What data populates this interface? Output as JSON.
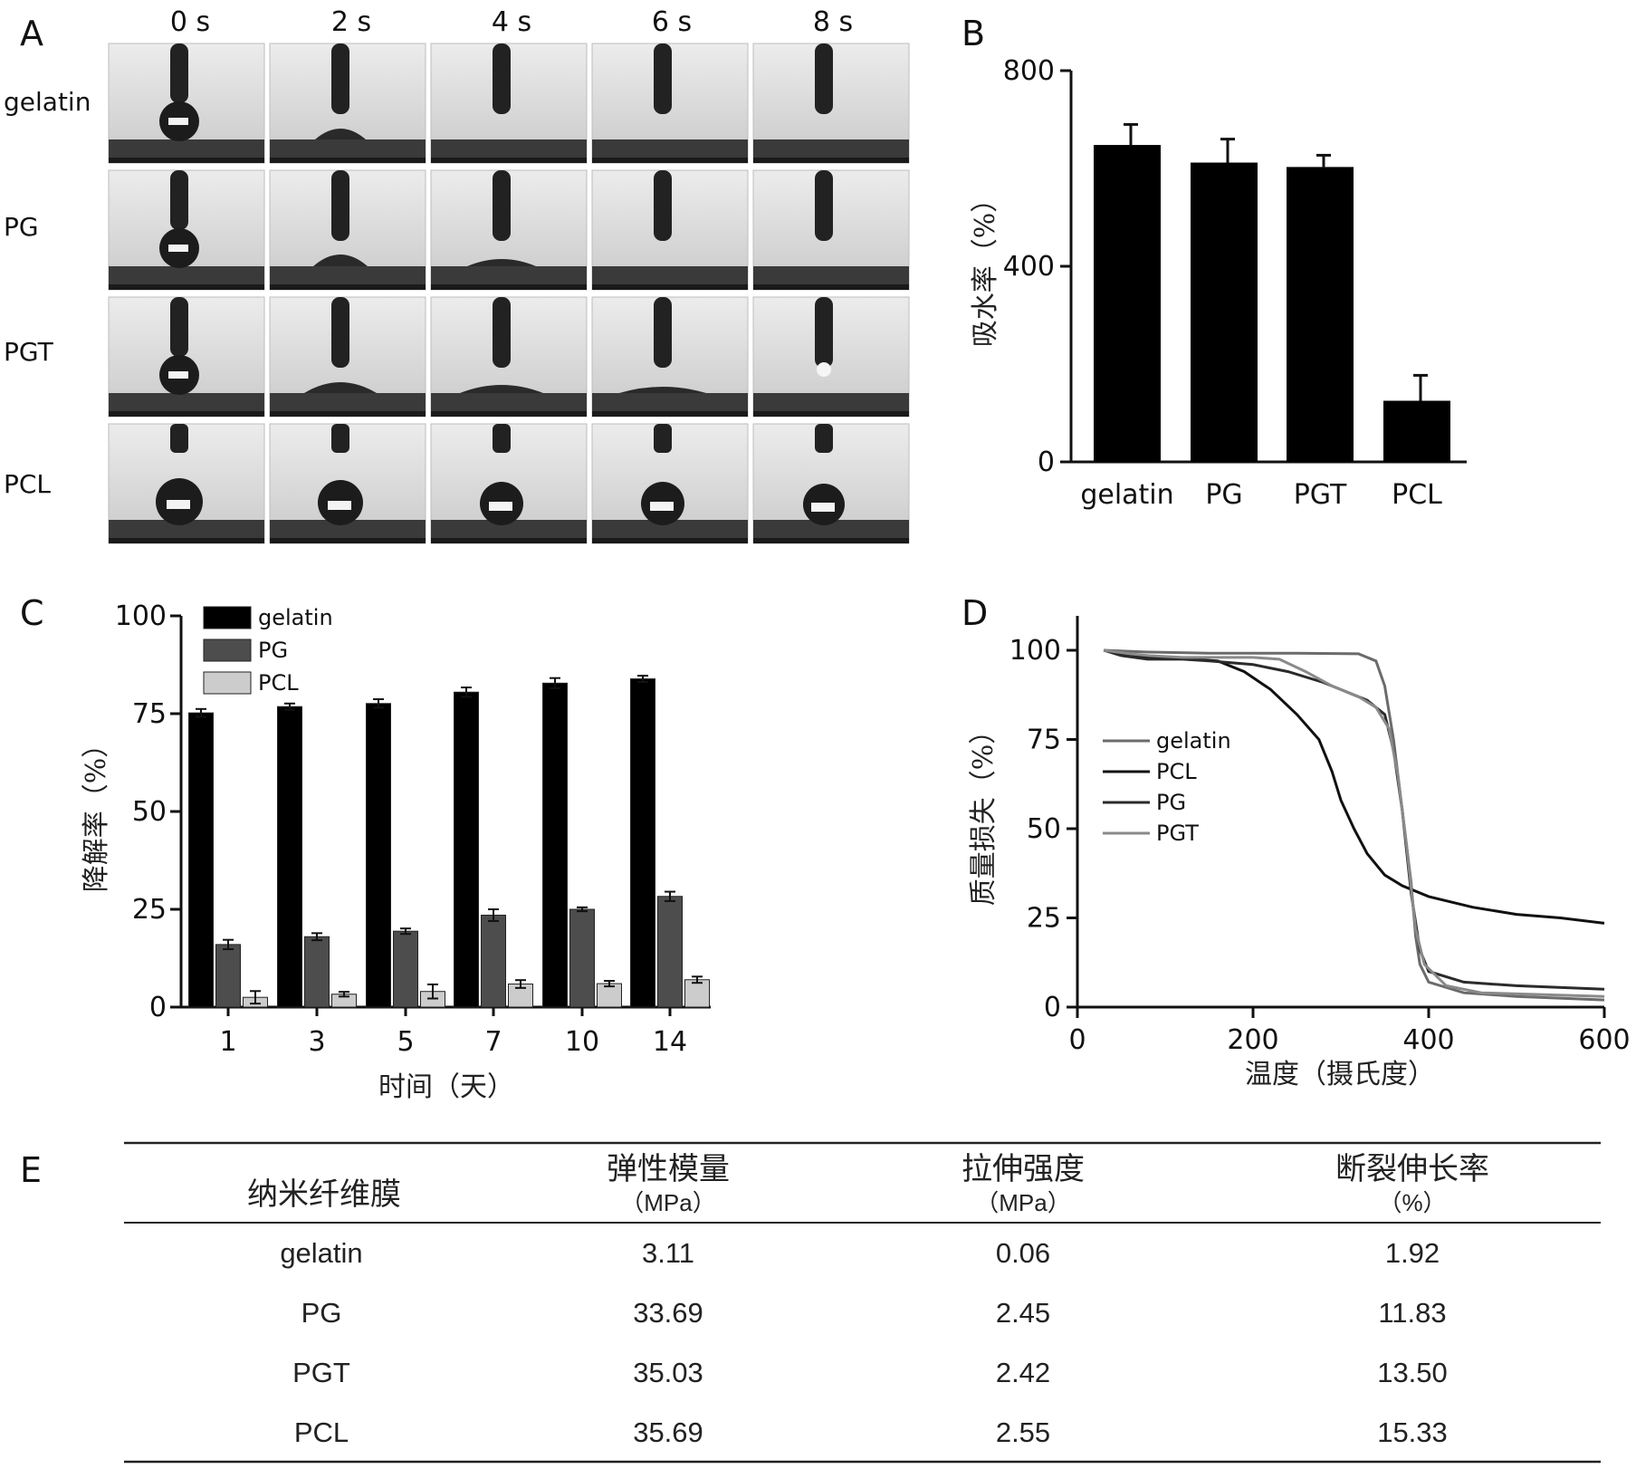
{
  "panel_letters": [
    "A",
    "B",
    "C",
    "D",
    "E"
  ],
  "panel_a": {
    "time_labels": [
      "0 s",
      "2 s",
      "4 s",
      "6 s",
      "8 s"
    ],
    "row_labels": [
      "gelatin",
      "PG",
      "PGT",
      "PCL"
    ]
  },
  "chart_data": [
    {
      "panel": "B",
      "type": "bar",
      "categories": [
        "gelatin",
        "PG",
        "PGT",
        "PCL"
      ],
      "values": [
        648,
        612,
        603,
        125
      ],
      "errors": [
        42,
        48,
        24,
        52
      ],
      "ylabel": "吸水率（%）",
      "ylim": [
        0,
        800
      ],
      "yticks": [
        "0",
        "400",
        "800"
      ],
      "bar_color": "#000000"
    },
    {
      "panel": "C",
      "type": "bar",
      "categories": [
        "1",
        "3",
        "5",
        "7",
        "10",
        "14"
      ],
      "series": [
        {
          "name": "gelatin",
          "color": "#000000",
          "values": [
            75.2,
            76.8,
            77.6,
            80.5,
            82.8,
            83.9
          ],
          "errors": [
            1.0,
            0.8,
            1.1,
            1.2,
            1.3,
            0.8
          ]
        },
        {
          "name": "PG",
          "color": "#4d4d4d",
          "values": [
            16.0,
            18.0,
            19.4,
            23.5,
            25.0,
            28.3
          ],
          "errors": [
            1.2,
            0.9,
            0.7,
            1.5,
            0.5,
            1.2
          ]
        },
        {
          "name": "PCL",
          "color": "#cccccc",
          "values": [
            2.5,
            3.3,
            4.0,
            5.9,
            6.0,
            7.0
          ],
          "errors": [
            1.6,
            0.6,
            1.8,
            1.0,
            0.7,
            0.8
          ]
        }
      ],
      "xlabel": "时间（天）",
      "ylabel": "降解率（%）",
      "ylim": [
        0,
        100
      ],
      "yticks": [
        "0",
        "25",
        "50",
        "75",
        "100"
      ],
      "legend_position": "top-left"
    },
    {
      "panel": "D",
      "type": "line",
      "xlabel": "温度（摄氏度）",
      "ylabel": "质量损失（%）",
      "xlim": [
        0,
        600
      ],
      "ylim": [
        0,
        100
      ],
      "xticks": [
        "0",
        "200",
        "400",
        "600"
      ],
      "yticks": [
        "0",
        "25",
        "50",
        "75",
        "100"
      ],
      "legend_position": "middle-left",
      "series": [
        {
          "name": "gelatin",
          "color": "#6b6b6b",
          "points": [
            [
              30,
              100
            ],
            [
              80,
              99.5
            ],
            [
              150,
              99.2
            ],
            [
              250,
              99.2
            ],
            [
              320,
              99
            ],
            [
              340,
              97
            ],
            [
              350,
              90
            ],
            [
              360,
              75
            ],
            [
              370,
              55
            ],
            [
              380,
              35
            ],
            [
              385,
              20
            ],
            [
              390,
              12
            ],
            [
              400,
              7
            ],
            [
              440,
              4
            ],
            [
              500,
              3
            ],
            [
              600,
              2
            ]
          ]
        },
        {
          "name": "PCL",
          "color": "#111111",
          "points": [
            [
              30,
              100
            ],
            [
              50,
              99
            ],
            [
              80,
              98
            ],
            [
              130,
              97.5
            ],
            [
              160,
              97
            ],
            [
              190,
              94
            ],
            [
              220,
              89
            ],
            [
              250,
              82
            ],
            [
              275,
              75
            ],
            [
              290,
              66
            ],
            [
              300,
              58
            ],
            [
              315,
              50
            ],
            [
              330,
              43
            ],
            [
              350,
              37
            ],
            [
              370,
              34
            ],
            [
              400,
              31
            ],
            [
              450,
              28
            ],
            [
              500,
              26
            ],
            [
              550,
              25
            ],
            [
              600,
              23.5
            ]
          ]
        },
        {
          "name": "PG",
          "color": "#2b2b2b",
          "points": [
            [
              30,
              100
            ],
            [
              50,
              98.5
            ],
            [
              80,
              97.5
            ],
            [
              120,
              97.5
            ],
            [
              150,
              97
            ],
            [
              200,
              96
            ],
            [
              240,
              94
            ],
            [
              280,
              91
            ],
            [
              310,
              88
            ],
            [
              330,
              86
            ],
            [
              350,
              82
            ],
            [
              360,
              72
            ],
            [
              370,
              55
            ],
            [
              380,
              32
            ],
            [
              390,
              16
            ],
            [
              400,
              10
            ],
            [
              440,
              7
            ],
            [
              500,
              6
            ],
            [
              600,
              5
            ]
          ]
        },
        {
          "name": "PGT",
          "color": "#8a8a8a",
          "points": [
            [
              30,
              100
            ],
            [
              60,
              99
            ],
            [
              80,
              98.5
            ],
            [
              120,
              98
            ],
            [
              200,
              98
            ],
            [
              230,
              97.5
            ],
            [
              260,
              94
            ],
            [
              290,
              90
            ],
            [
              320,
              87
            ],
            [
              340,
              84
            ],
            [
              355,
              78
            ],
            [
              365,
              65
            ],
            [
              375,
              45
            ],
            [
              385,
              22
            ],
            [
              395,
              12
            ],
            [
              420,
              6
            ],
            [
              460,
              4
            ],
            [
              600,
              3
            ]
          ]
        }
      ]
    }
  ],
  "table": {
    "headers": [
      {
        "title": "纳米纤维膜",
        "unit": ""
      },
      {
        "title": "弹性模量",
        "unit": "（MPa）"
      },
      {
        "title": "拉伸强度",
        "unit": "（MPa）"
      },
      {
        "title": "断裂伸长率",
        "unit": "（%）"
      }
    ],
    "rows": [
      [
        "gelatin",
        "3.11",
        "0.06",
        "1.92"
      ],
      [
        "PG",
        "33.69",
        "2.45",
        "11.83"
      ],
      [
        "PGT",
        "35.03",
        "2.42",
        "13.50"
      ],
      [
        "PCL",
        "35.69",
        "2.55",
        "15.33"
      ]
    ]
  }
}
